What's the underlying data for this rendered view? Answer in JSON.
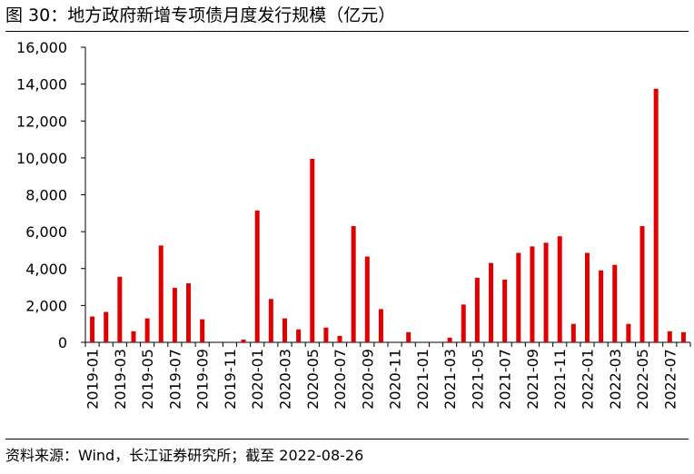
{
  "title": "图 30：地方政府新增专项债月度发行规模（亿元）",
  "source": "资料来源：Wind，长江证券研究所；截至 2022-08-26",
  "chart_data": {
    "type": "bar",
    "title": "图 30：地方政府新增专项债月度发行规模（亿元）",
    "xlabel": "",
    "ylabel": "",
    "ylim": [
      0,
      16000
    ],
    "yticks": [
      0,
      2000,
      4000,
      6000,
      8000,
      10000,
      12000,
      14000,
      16000
    ],
    "ytick_labels": [
      "0",
      "2,000",
      "4,000",
      "6,000",
      "8,000",
      "10,000",
      "12,000",
      "14,000",
      "16,000"
    ],
    "bar_color": "#e00000",
    "grid": false,
    "legend": "none",
    "categories": [
      "2019-01",
      "2019-02",
      "2019-03",
      "2019-04",
      "2019-05",
      "2019-06",
      "2019-07",
      "2019-08",
      "2019-09",
      "2019-10",
      "2019-11",
      "2019-12",
      "2020-01",
      "2020-02",
      "2020-03",
      "2020-04",
      "2020-05",
      "2020-06",
      "2020-07",
      "2020-08",
      "2020-09",
      "2020-10",
      "2020-11",
      "2020-12",
      "2021-01",
      "2021-02",
      "2021-03",
      "2021-04",
      "2021-05",
      "2021-06",
      "2021-07",
      "2021-08",
      "2021-09",
      "2021-10",
      "2021-11",
      "2021-12",
      "2022-01",
      "2022-02",
      "2022-03",
      "2022-04",
      "2022-05",
      "2022-06",
      "2022-07",
      "2022-08"
    ],
    "xtick_labels": [
      "2019-01",
      "2019-03",
      "2019-05",
      "2019-07",
      "2019-09",
      "2019-11",
      "2020-01",
      "2020-03",
      "2020-05",
      "2020-07",
      "2020-09",
      "2020-11",
      "2021-01",
      "2021-03",
      "2021-05",
      "2021-07",
      "2021-09",
      "2021-11",
      "2022-01",
      "2022-03",
      "2022-05",
      "2022-07"
    ],
    "values": [
      1400,
      1650,
      3550,
      600,
      1300,
      5250,
      2950,
      3200,
      1250,
      0,
      0,
      150,
      7150,
      2350,
      1300,
      700,
      9950,
      800,
      350,
      6300,
      4650,
      1800,
      0,
      550,
      0,
      0,
      250,
      2050,
      3500,
      4300,
      3400,
      4850,
      5200,
      5400,
      5750,
      1000,
      4850,
      3900,
      4200,
      1000,
      6300,
      13750,
      600,
      550
    ]
  }
}
